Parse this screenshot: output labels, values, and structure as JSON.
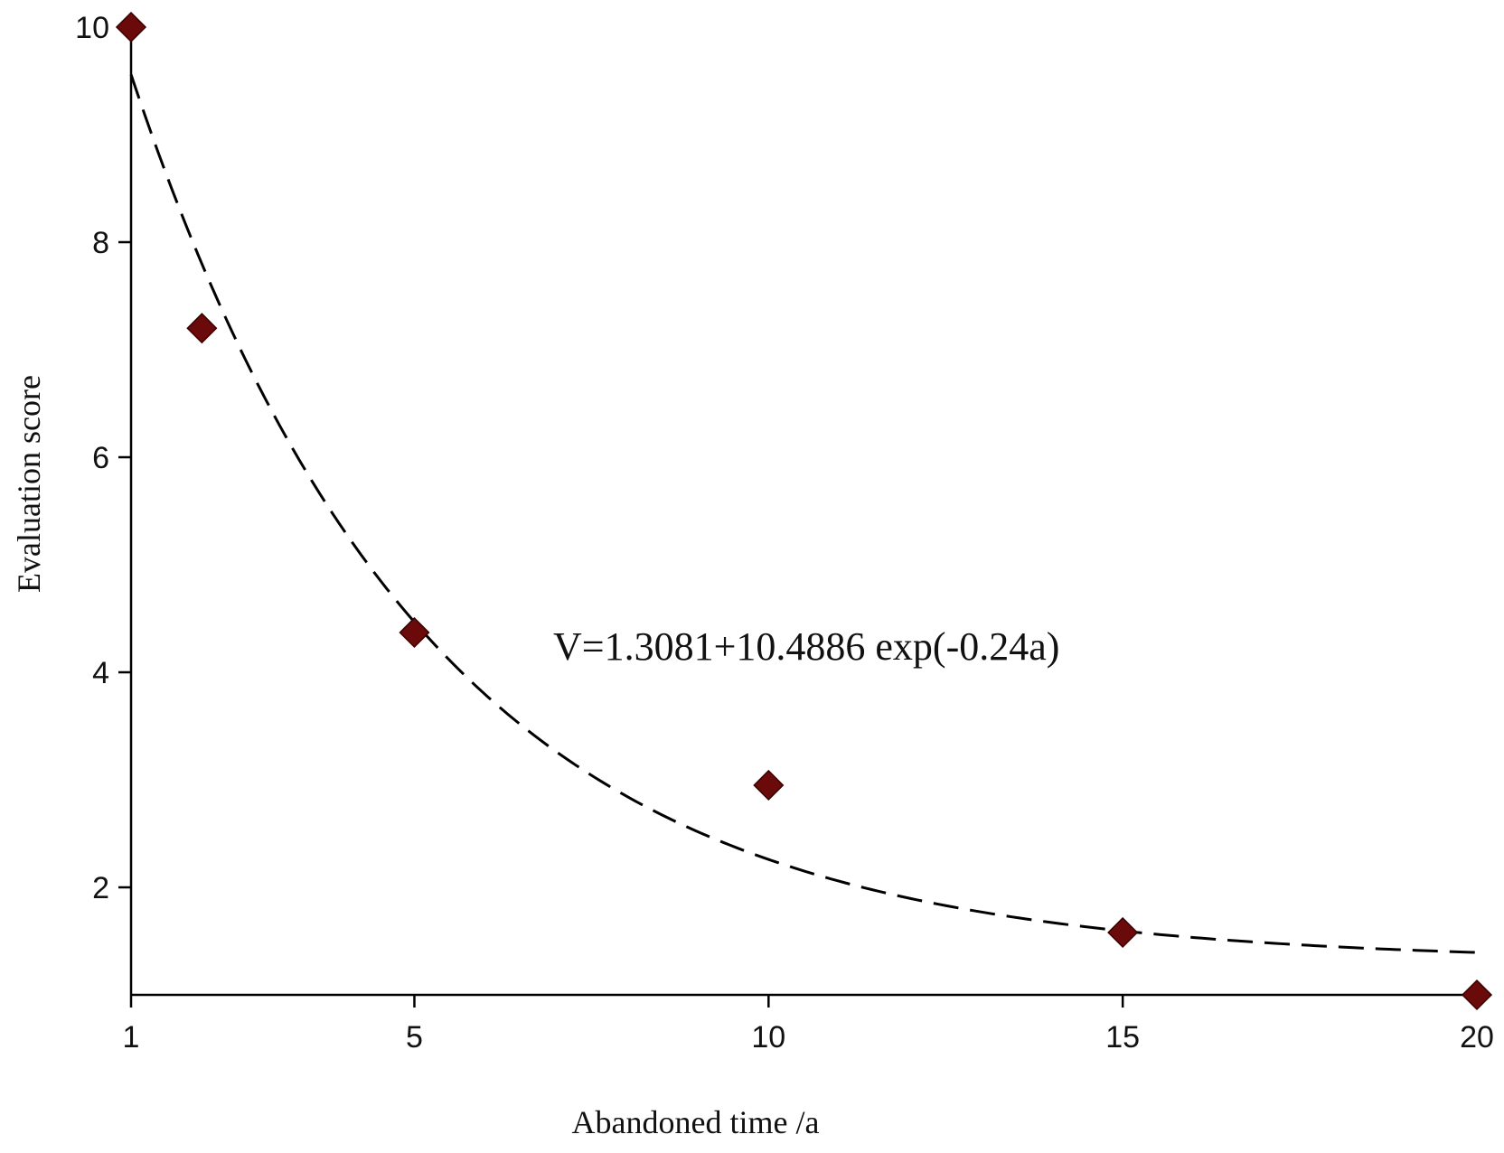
{
  "chart_data": {
    "type": "scatter",
    "xlabel": "Abandoned time /a",
    "ylabel": "Evaluation score",
    "xlim": [
      1,
      20
    ],
    "ylim": [
      1,
      10
    ],
    "x_ticks": [
      1,
      5,
      10,
      15,
      20
    ],
    "y_ticks": [
      2,
      4,
      6,
      8,
      10
    ],
    "grid": false,
    "legend": "none",
    "marker_color": "#6b0a0a",
    "series": [
      {
        "x": [
          1,
          2,
          5,
          10,
          15,
          20
        ],
        "y": [
          10,
          7.2,
          4.37,
          2.95,
          1.58,
          1
        ]
      }
    ],
    "fit": {
      "equation_text": "V=1.3081+10.4886 exp(-0.24a)",
      "intercept": 1.3081,
      "coefficient": 10.4886,
      "rate": -0.24,
      "x_range": [
        1,
        20
      ]
    }
  }
}
